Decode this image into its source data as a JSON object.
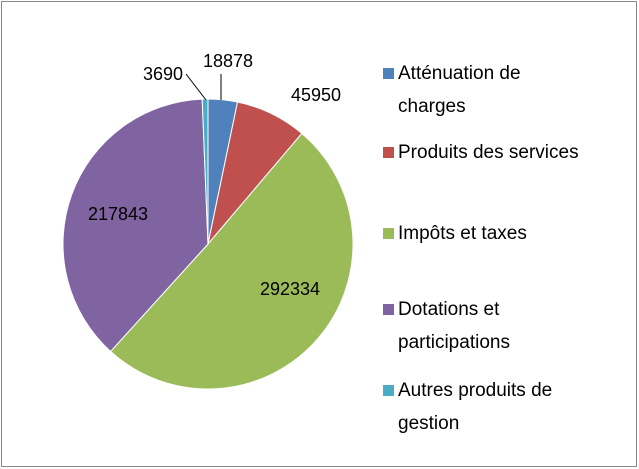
{
  "chart_data": {
    "type": "pie",
    "categories": [
      "Atténuation de charges",
      "Produits des services",
      "Impôts et taxes",
      "Dotations et participations",
      "Autres produits de gestion"
    ],
    "values": [
      18878,
      45950,
      292334,
      217843,
      3690
    ],
    "colors": [
      "#4f81bd",
      "#c0504d",
      "#9bbb59",
      "#8064a2",
      "#4bacc6"
    ],
    "legend": "right"
  }
}
